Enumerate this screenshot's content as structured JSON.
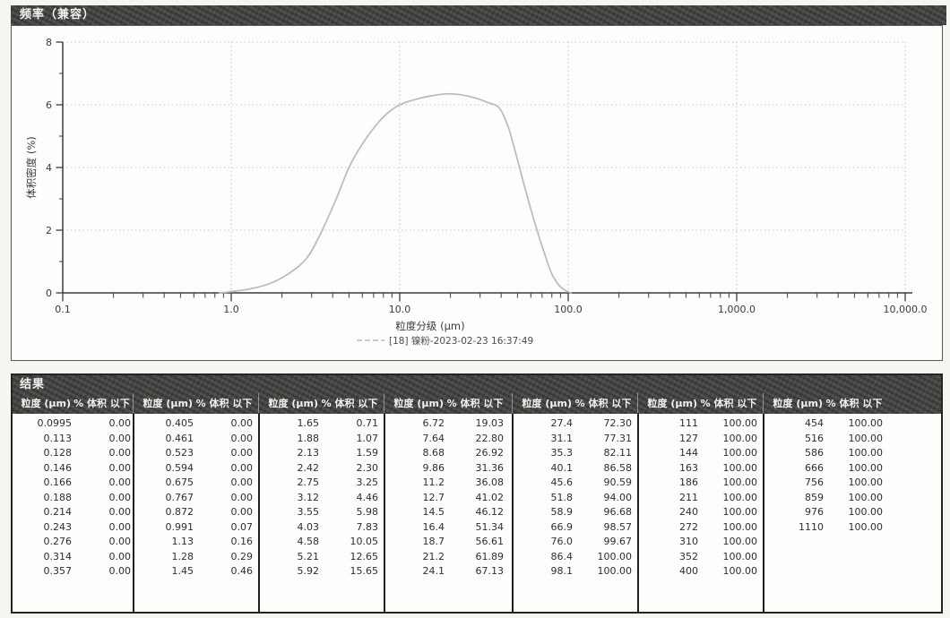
{
  "frequency_panel": {
    "title": "频率（兼容）"
  },
  "chart_data": {
    "type": "line",
    "title": "频率（兼容）",
    "xlabel": "粒度分级 (μm)",
    "ylabel": "体积密度 (%)",
    "x_scale": "log",
    "xlim": [
      0.1,
      10000
    ],
    "ylim": [
      0,
      8
    ],
    "x_ticks": [
      "0.1",
      "1.0",
      "10.0",
      "100.0",
      "1,000.0",
      "10,000.0"
    ],
    "y_ticks": [
      0,
      2,
      4,
      6,
      8
    ],
    "grid": true,
    "legend": "[18] 镍粉-2023-02-23 16:37:49",
    "legend_position": "bottom-center",
    "line_color": "#b6bbbd",
    "series": [
      {
        "name": "[18] 镍粉-2023-02-23 16:37:49",
        "points": [
          [
            0.85,
            0
          ],
          [
            1.0,
            0.04
          ],
          [
            1.3,
            0.13
          ],
          [
            1.7,
            0.3
          ],
          [
            2.2,
            0.62
          ],
          [
            2.8,
            1.1
          ],
          [
            3.4,
            1.9
          ],
          [
            4.2,
            3.0
          ],
          [
            5.0,
            4.0
          ],
          [
            6.0,
            4.75
          ],
          [
            7.5,
            5.45
          ],
          [
            9.0,
            5.85
          ],
          [
            10.5,
            6.05
          ],
          [
            13,
            6.2
          ],
          [
            16,
            6.3
          ],
          [
            19,
            6.35
          ],
          [
            23,
            6.32
          ],
          [
            28,
            6.22
          ],
          [
            33,
            6.08
          ],
          [
            39,
            5.9
          ],
          [
            44,
            5.3
          ],
          [
            48,
            4.6
          ],
          [
            52,
            3.9
          ],
          [
            57,
            3.1
          ],
          [
            62,
            2.4
          ],
          [
            68,
            1.7
          ],
          [
            74,
            1.1
          ],
          [
            80,
            0.6
          ],
          [
            88,
            0.25
          ],
          [
            96,
            0.08
          ],
          [
            104,
            0.0
          ]
        ]
      }
    ]
  },
  "results_panel": {
    "title": "结果",
    "size_header": "粒度 (μm)",
    "pct_header": "% 体积 以下",
    "groups": [
      [
        [
          "0.0995",
          "0.00"
        ],
        [
          "0.113",
          "0.00"
        ],
        [
          "0.128",
          "0.00"
        ],
        [
          "0.146",
          "0.00"
        ],
        [
          "0.166",
          "0.00"
        ],
        [
          "0.188",
          "0.00"
        ],
        [
          "0.214",
          "0.00"
        ],
        [
          "0.243",
          "0.00"
        ],
        [
          "0.276",
          "0.00"
        ],
        [
          "0.314",
          "0.00"
        ],
        [
          "0.357",
          "0.00"
        ]
      ],
      [
        [
          "0.405",
          "0.00"
        ],
        [
          "0.461",
          "0.00"
        ],
        [
          "0.523",
          "0.00"
        ],
        [
          "0.594",
          "0.00"
        ],
        [
          "0.675",
          "0.00"
        ],
        [
          "0.767",
          "0.00"
        ],
        [
          "0.872",
          "0.00"
        ],
        [
          "0.991",
          "0.07"
        ],
        [
          "1.13",
          "0.16"
        ],
        [
          "1.28",
          "0.29"
        ],
        [
          "1.45",
          "0.46"
        ]
      ],
      [
        [
          "1.65",
          "0.71"
        ],
        [
          "1.88",
          "1.07"
        ],
        [
          "2.13",
          "1.59"
        ],
        [
          "2.42",
          "2.30"
        ],
        [
          "2.75",
          "3.25"
        ],
        [
          "3.12",
          "4.46"
        ],
        [
          "3.55",
          "5.98"
        ],
        [
          "4.03",
          "7.83"
        ],
        [
          "4.58",
          "10.05"
        ],
        [
          "5.21",
          "12.65"
        ],
        [
          "5.92",
          "15.65"
        ]
      ],
      [
        [
          "6.72",
          "19.03"
        ],
        [
          "7.64",
          "22.80"
        ],
        [
          "8.68",
          "26.92"
        ],
        [
          "9.86",
          "31.36"
        ],
        [
          "11.2",
          "36.08"
        ],
        [
          "12.7",
          "41.02"
        ],
        [
          "14.5",
          "46.12"
        ],
        [
          "16.4",
          "51.34"
        ],
        [
          "18.7",
          "56.61"
        ],
        [
          "21.2",
          "61.89"
        ],
        [
          "24.1",
          "67.13"
        ]
      ],
      [
        [
          "27.4",
          "72.30"
        ],
        [
          "31.1",
          "77.31"
        ],
        [
          "35.3",
          "82.11"
        ],
        [
          "40.1",
          "86.58"
        ],
        [
          "45.6",
          "90.59"
        ],
        [
          "51.8",
          "94.00"
        ],
        [
          "58.9",
          "96.68"
        ],
        [
          "66.9",
          "98.57"
        ],
        [
          "76.0",
          "99.67"
        ],
        [
          "86.4",
          "100.00"
        ],
        [
          "98.1",
          "100.00"
        ]
      ],
      [
        [
          "111",
          "100.00"
        ],
        [
          "127",
          "100.00"
        ],
        [
          "144",
          "100.00"
        ],
        [
          "163",
          "100.00"
        ],
        [
          "186",
          "100.00"
        ],
        [
          "211",
          "100.00"
        ],
        [
          "240",
          "100.00"
        ],
        [
          "272",
          "100.00"
        ],
        [
          "310",
          "100.00"
        ],
        [
          "352",
          "100.00"
        ],
        [
          "400",
          "100.00"
        ]
      ],
      [
        [
          "454",
          "100.00"
        ],
        [
          "516",
          "100.00"
        ],
        [
          "586",
          "100.00"
        ],
        [
          "666",
          "100.00"
        ],
        [
          "756",
          "100.00"
        ],
        [
          "859",
          "100.00"
        ],
        [
          "976",
          "100.00"
        ],
        [
          "1110",
          "100.00"
        ]
      ]
    ]
  }
}
